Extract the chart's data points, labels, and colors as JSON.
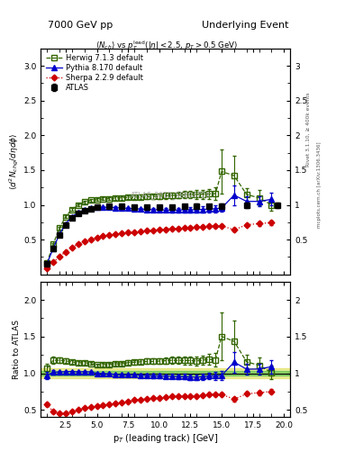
{
  "title_left": "7000 GeV pp",
  "title_right": "Underlying Event",
  "subtitle": "<N_{ch}> vs p_{T}^{lead}(|#eta| < 2.5, p_{T} > 0.5 GeV)",
  "ylabel_main": "$\\langle d^2 N_{chg}/d\\eta d\\phi \\rangle$",
  "ylabel_ratio": "Ratio to ATLAS",
  "xlabel": "p$_{T}$ (leading track) [GeV]",
  "watermark": "ATLAS_2010_S8894728",
  "right_label1": "Rivet 3.1.10, ≥ 400k events",
  "right_label2": "mcplots.cern.ch [arXiv:1306.3436]",
  "atlas_x": [
    1.0,
    1.5,
    2.0,
    2.5,
    3.0,
    3.5,
    4.0,
    4.5,
    5.0,
    6.0,
    7.0,
    8.0,
    9.0,
    10.0,
    11.0,
    12.0,
    13.0,
    14.0,
    15.0,
    17.0,
    19.5
  ],
  "atlas_y": [
    0.155,
    0.37,
    0.565,
    0.71,
    0.81,
    0.875,
    0.91,
    0.94,
    0.965,
    0.975,
    0.975,
    0.965,
    0.965,
    0.965,
    0.965,
    0.975,
    0.985,
    0.975,
    0.985,
    0.995,
    0.99
  ],
  "atlas_yerr": [
    0.012,
    0.018,
    0.02,
    0.02,
    0.02,
    0.02,
    0.018,
    0.018,
    0.018,
    0.018,
    0.018,
    0.02,
    0.025,
    0.025,
    0.025,
    0.025,
    0.03,
    0.03,
    0.03,
    0.035,
    0.04
  ],
  "herwig_x": [
    1.0,
    1.5,
    2.0,
    2.5,
    3.0,
    3.5,
    4.0,
    4.5,
    5.0,
    5.5,
    6.0,
    6.5,
    7.0,
    7.5,
    8.0,
    8.5,
    9.0,
    9.5,
    10.0,
    10.5,
    11.0,
    11.5,
    12.0,
    12.5,
    13.0,
    13.5,
    14.0,
    14.5,
    15.0,
    16.0,
    17.0,
    18.0,
    19.0
  ],
  "herwig_y": [
    0.165,
    0.435,
    0.665,
    0.83,
    0.935,
    1.0,
    1.04,
    1.065,
    1.075,
    1.085,
    1.09,
    1.1,
    1.1,
    1.11,
    1.11,
    1.115,
    1.12,
    1.12,
    1.125,
    1.13,
    1.135,
    1.14,
    1.145,
    1.15,
    1.15,
    1.155,
    1.16,
    1.16,
    1.48,
    1.42,
    1.15,
    1.1,
    1.0
  ],
  "herwig_yerr": [
    0.01,
    0.018,
    0.02,
    0.02,
    0.02,
    0.02,
    0.018,
    0.018,
    0.018,
    0.02,
    0.025,
    0.025,
    0.025,
    0.03,
    0.03,
    0.03,
    0.035,
    0.035,
    0.04,
    0.04,
    0.045,
    0.045,
    0.05,
    0.055,
    0.06,
    0.065,
    0.07,
    0.09,
    0.32,
    0.28,
    0.09,
    0.11,
    0.09
  ],
  "pythia_x": [
    1.0,
    1.5,
    2.0,
    2.5,
    3.0,
    3.5,
    4.0,
    4.5,
    5.0,
    5.5,
    6.0,
    6.5,
    7.0,
    7.5,
    8.0,
    8.5,
    9.0,
    9.5,
    10.0,
    10.5,
    11.0,
    11.5,
    12.0,
    12.5,
    13.0,
    13.5,
    14.0,
    14.5,
    15.0,
    16.0,
    17.0,
    18.0,
    19.0
  ],
  "pythia_y": [
    0.15,
    0.375,
    0.575,
    0.725,
    0.83,
    0.89,
    0.93,
    0.955,
    0.965,
    0.965,
    0.965,
    0.96,
    0.955,
    0.95,
    0.945,
    0.94,
    0.935,
    0.93,
    0.93,
    0.925,
    0.925,
    0.925,
    0.93,
    0.93,
    0.93,
    0.935,
    0.94,
    0.945,
    0.955,
    1.14,
    1.05,
    1.05,
    1.08
  ],
  "pythia_yerr": [
    0.008,
    0.01,
    0.01,
    0.01,
    0.01,
    0.01,
    0.01,
    0.01,
    0.01,
    0.01,
    0.015,
    0.015,
    0.015,
    0.015,
    0.015,
    0.02,
    0.02,
    0.025,
    0.025,
    0.025,
    0.03,
    0.03,
    0.035,
    0.035,
    0.04,
    0.04,
    0.045,
    0.05,
    0.055,
    0.14,
    0.07,
    0.07,
    0.09
  ],
  "sherpa_x": [
    1.0,
    1.5,
    2.0,
    2.5,
    3.0,
    3.5,
    4.0,
    4.5,
    5.0,
    5.5,
    6.0,
    6.5,
    7.0,
    7.5,
    8.0,
    8.5,
    9.0,
    9.5,
    10.0,
    10.5,
    11.0,
    11.5,
    12.0,
    12.5,
    13.0,
    13.5,
    14.0,
    14.5,
    15.0,
    16.0,
    17.0,
    18.0,
    19.0
  ],
  "sherpa_y": [
    0.09,
    0.175,
    0.255,
    0.325,
    0.385,
    0.435,
    0.475,
    0.505,
    0.53,
    0.55,
    0.565,
    0.578,
    0.59,
    0.6,
    0.61,
    0.618,
    0.628,
    0.635,
    0.643,
    0.65,
    0.658,
    0.663,
    0.668,
    0.675,
    0.68,
    0.685,
    0.69,
    0.695,
    0.7,
    0.64,
    0.715,
    0.73,
    0.745
  ],
  "sherpa_yerr": [
    0.004,
    0.006,
    0.007,
    0.008,
    0.008,
    0.008,
    0.008,
    0.008,
    0.008,
    0.009,
    0.009,
    0.009,
    0.009,
    0.01,
    0.01,
    0.012,
    0.012,
    0.013,
    0.013,
    0.014,
    0.015,
    0.015,
    0.015,
    0.016,
    0.018,
    0.018,
    0.02,
    0.02,
    0.022,
    0.028,
    0.025,
    0.03,
    0.03
  ],
  "green_band": 0.03,
  "yellow_band": 0.07,
  "ylim_main": [
    0.0,
    3.25
  ],
  "ylim_ratio": [
    0.4,
    2.25
  ],
  "yticks_main": [
    0.5,
    1.0,
    1.5,
    2.0,
    2.5,
    3.0
  ],
  "yticks_ratio": [
    0.5,
    1.0,
    1.5,
    2.0
  ],
  "xlim": [
    0.5,
    20.5
  ],
  "color_atlas": "#000000",
  "color_herwig": "#336600",
  "color_pythia": "#0000cc",
  "color_sherpa": "#cc0000",
  "color_green": "#44bb44",
  "color_yellow": "#dddd44"
}
